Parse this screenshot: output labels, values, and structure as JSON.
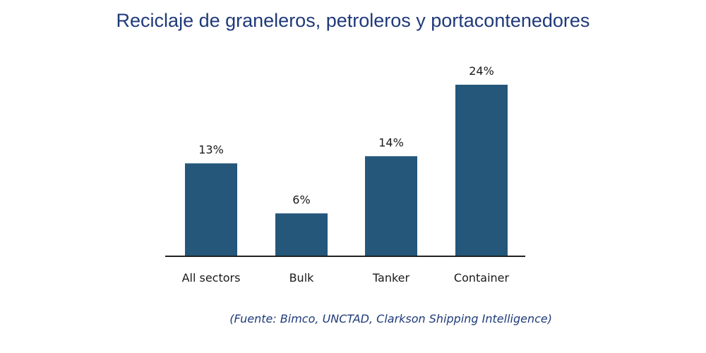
{
  "chart_data": {
    "type": "bar",
    "title": "Reciclaje de graneleros, petroleros y portacontenedores",
    "categories": [
      "All sectors",
      "Bulk",
      "Tanker",
      "Container"
    ],
    "values": [
      13,
      6,
      14,
      24
    ],
    "value_labels": [
      "13%",
      "6%",
      "14%",
      "24%"
    ],
    "unit": "%",
    "ylim": [
      0,
      24
    ],
    "xlabel": "",
    "ylabel": "",
    "grid": false,
    "bar_color": "#24577a",
    "axis_color": "#222222",
    "source": "(Fuente: Bimco, UNCTAD, Clarkson Shipping Intelligence)"
  }
}
